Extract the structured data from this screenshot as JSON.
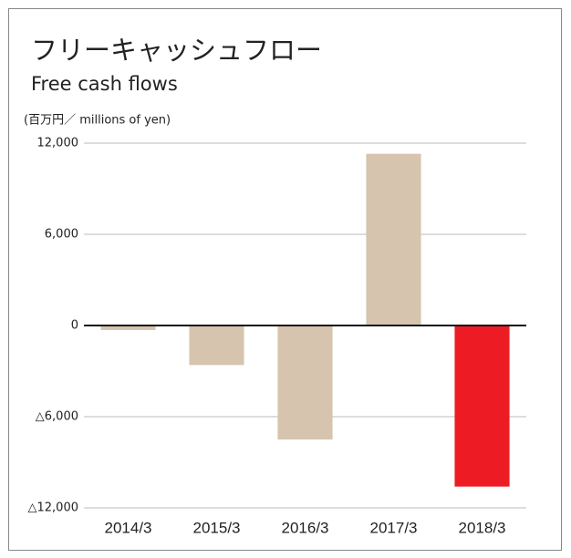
{
  "chart_data": {
    "type": "bar",
    "title": "フリーキャッシュフロー",
    "subtitle": "Free cash flows",
    "y_label": "(百万円／ millions of yen)",
    "categories": [
      "2014/3",
      "2015/3",
      "2016/3",
      "2017/3",
      "2018/3"
    ],
    "values": [
      -300,
      -2600,
      -7500,
      11300,
      -10600
    ],
    "colors": [
      "#d7c4ae",
      "#d7c4ae",
      "#d7c4ae",
      "#d7c4ae",
      "#ed1c24"
    ],
    "ylim": [
      -12000,
      12000
    ],
    "yticks": [
      {
        "value": -12000,
        "label": "△12,000"
      },
      {
        "value": -6000,
        "label": "△6,000"
      },
      0,
      {
        "value": 6000,
        "label": "6,000"
      },
      {
        "value": 12000,
        "label": "12,000"
      }
    ],
    "grid": true
  }
}
